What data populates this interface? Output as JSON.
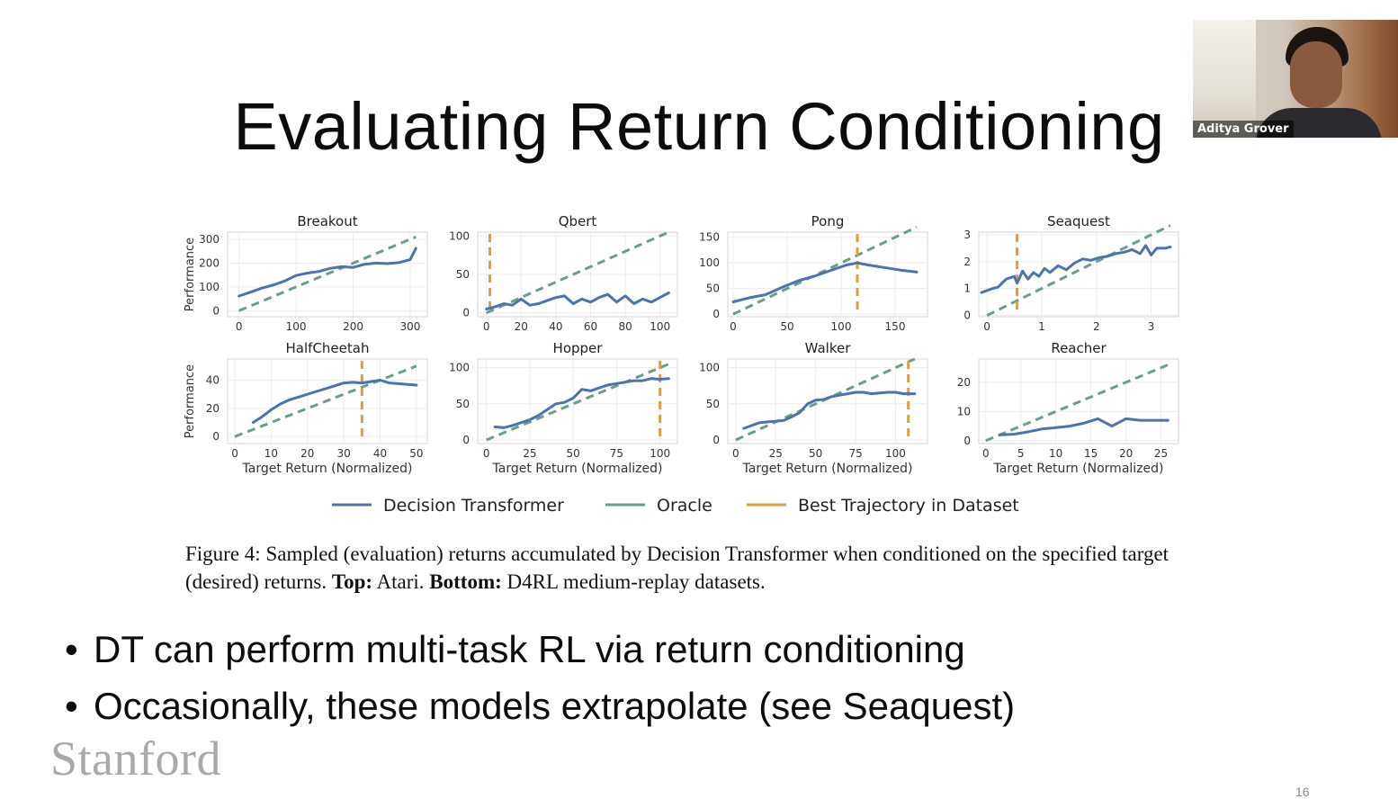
{
  "slide": {
    "title": "Evaluating Return Conditioning",
    "caption": {
      "lead": "Figure 4:   Sampled (evaluation) returns accumulated by Decision Transformer when conditioned on the specified target (desired) returns. ",
      "top_label": "Top:",
      "top_text": " Atari. ",
      "bottom_label": "Bottom:",
      "bottom_text": " D4RL medium-replay datasets."
    },
    "bullets": [
      "DT can perform multi-task RL via return conditioning",
      "Occasionally, these models extrapolate (see Seaquest)"
    ],
    "logo": "Stanford",
    "page_number": "16"
  },
  "webcam": {
    "participant_name": "Aditya Grover"
  },
  "colors": {
    "dt": "#4c72b0",
    "oracle": "#6a9f86",
    "best": "#dd9f3c"
  },
  "legend": [
    {
      "name": "Decision Transformer",
      "color": "#4c72b0",
      "dashed": false
    },
    {
      "name": "Oracle",
      "color": "#6a9f86",
      "dashed": false
    },
    {
      "name": "Best Trajectory in Dataset",
      "color": "#dd9f3c",
      "dashed": false
    }
  ],
  "chart_data": [
    {
      "type": "line",
      "title": "Breakout",
      "ylabel": "Performance",
      "xlabel": "",
      "xlim": [
        -20,
        330
      ],
      "ylim": [
        -25,
        330
      ],
      "xticks": [
        0,
        100,
        200,
        300
      ],
      "yticks": [
        0,
        100,
        200,
        300
      ],
      "x": [
        0,
        20,
        40,
        60,
        80,
        100,
        120,
        140,
        160,
        180,
        200,
        220,
        240,
        260,
        280,
        300,
        310
      ],
      "y": [
        62,
        78,
        95,
        108,
        125,
        148,
        158,
        165,
        178,
        185,
        182,
        195,
        200,
        198,
        202,
        215,
        262
      ],
      "oracle": [
        0,
        310
      ],
      "best": null
    },
    {
      "type": "line",
      "title": "Qbert",
      "ylabel": "",
      "xlabel": "",
      "xlim": [
        -5,
        110
      ],
      "ylim": [
        -5,
        105
      ],
      "xticks": [
        0,
        20,
        40,
        60,
        80,
        100
      ],
      "yticks": [
        0,
        50,
        100
      ],
      "x": [
        0,
        5,
        10,
        15,
        20,
        25,
        30,
        35,
        40,
        45,
        50,
        55,
        60,
        65,
        70,
        75,
        80,
        85,
        90,
        95,
        100,
        105
      ],
      "y": [
        5,
        8,
        12,
        10,
        18,
        10,
        12,
        16,
        20,
        22,
        12,
        18,
        14,
        20,
        24,
        14,
        22,
        12,
        18,
        14,
        20,
        26
      ],
      "oracle": [
        0,
        105
      ],
      "best": 2
    },
    {
      "type": "line",
      "title": "Pong",
      "ylabel": "",
      "xlabel": "",
      "xlim": [
        -5,
        180
      ],
      "ylim": [
        -5,
        160
      ],
      "xticks": [
        0,
        50,
        100,
        150
      ],
      "yticks": [
        0,
        50,
        100,
        150
      ],
      "x": [
        0,
        15,
        30,
        45,
        60,
        75,
        90,
        105,
        115,
        125,
        140,
        155,
        170
      ],
      "y": [
        24,
        32,
        38,
        52,
        65,
        74,
        85,
        96,
        100,
        96,
        91,
        86,
        82
      ],
      "oracle": [
        0,
        170
      ],
      "best": 115
    },
    {
      "type": "line",
      "title": "Seaquest",
      "ylabel": "",
      "xlabel": "",
      "xlim": [
        -0.15,
        3.5
      ],
      "ylim": [
        -0.05,
        3.1
      ],
      "xticks": [
        0,
        1,
        2,
        3
      ],
      "yticks": [
        0,
        1,
        2,
        3
      ],
      "x": [
        -0.1,
        0.1,
        0.2,
        0.35,
        0.5,
        0.55,
        0.65,
        0.75,
        0.85,
        0.95,
        1.05,
        1.15,
        1.3,
        1.45,
        1.6,
        1.75,
        1.9,
        2.05,
        2.2,
        2.35,
        2.5,
        2.65,
        2.8,
        2.9,
        3.0,
        3.1,
        3.25,
        3.35
      ],
      "y": [
        0.85,
        1.0,
        1.05,
        1.35,
        1.45,
        1.2,
        1.65,
        1.35,
        1.6,
        1.45,
        1.75,
        1.6,
        1.85,
        1.7,
        1.95,
        2.1,
        2.05,
        2.15,
        2.2,
        2.3,
        2.35,
        2.45,
        2.3,
        2.6,
        2.25,
        2.5,
        2.5,
        2.55
      ],
      "oracle": [
        0,
        3.35
      ],
      "best": 0.55
    },
    {
      "type": "line",
      "title": "HalfCheetah",
      "ylabel": "Performance",
      "xlabel": "Target Return (Normalized)",
      "xlim": [
        -2,
        53
      ],
      "ylim": [
        -5,
        55
      ],
      "xticks": [
        0,
        10,
        20,
        30,
        40,
        50
      ],
      "yticks": [
        0,
        20,
        40
      ],
      "x": [
        5,
        7.5,
        10,
        12.5,
        15,
        17.5,
        20,
        22.5,
        25,
        27.5,
        30,
        32.5,
        35,
        37.5,
        40,
        42.5,
        45,
        47.5,
        50
      ],
      "y": [
        10,
        14,
        19,
        23,
        26,
        28,
        30,
        32,
        34,
        36,
        38,
        38.5,
        38,
        39,
        40,
        38,
        37.5,
        37,
        36.5
      ],
      "oracle": [
        0,
        50
      ],
      "best": 35
    },
    {
      "type": "line",
      "title": "Hopper",
      "ylabel": "",
      "xlabel": "Target Return (Normalized)",
      "xlim": [
        -5,
        110
      ],
      "ylim": [
        -5,
        112
      ],
      "xticks": [
        0,
        25,
        50,
        75,
        100
      ],
      "yticks": [
        0,
        50,
        100
      ],
      "x": [
        5,
        10,
        15,
        20,
        25,
        30,
        35,
        40,
        45,
        50,
        55,
        60,
        65,
        70,
        75,
        80,
        85,
        90,
        95,
        100,
        105
      ],
      "y": [
        18,
        17,
        20,
        24,
        28,
        34,
        42,
        50,
        52,
        58,
        70,
        68,
        72,
        76,
        78,
        80,
        82,
        82,
        85,
        84,
        85
      ],
      "oracle": [
        0,
        105
      ],
      "best": 100
    },
    {
      "type": "line",
      "title": "Walker",
      "ylabel": "",
      "xlabel": "Target Return (Normalized)",
      "xlim": [
        -5,
        120
      ],
      "ylim": [
        -5,
        112
      ],
      "xticks": [
        0,
        25,
        50,
        75,
        100
      ],
      "yticks": [
        0,
        50,
        100
      ],
      "x": [
        5,
        10,
        15,
        20,
        25,
        30,
        35,
        40,
        45,
        50,
        55,
        60,
        65,
        70,
        75,
        80,
        85,
        90,
        95,
        100,
        105,
        112
      ],
      "y": [
        16,
        20,
        24,
        25,
        26,
        27,
        32,
        38,
        50,
        55,
        56,
        60,
        62,
        64,
        66,
        66,
        64,
        65,
        66,
        66,
        64,
        64
      ],
      "oracle": [
        0,
        112
      ],
      "best": 108
    },
    {
      "type": "line",
      "title": "Reacher",
      "ylabel": "",
      "xlabel": "Target Return (Normalized)",
      "xlim": [
        -1,
        27.5
      ],
      "ylim": [
        -1,
        28
      ],
      "xticks": [
        0,
        5,
        10,
        15,
        20,
        25
      ],
      "yticks": [
        0,
        10,
        20
      ],
      "x": [
        2,
        4,
        6,
        8,
        10,
        12,
        14,
        16,
        18,
        20,
        22,
        24,
        26
      ],
      "y": [
        2,
        2.2,
        3,
        4,
        4.5,
        5,
        6,
        7.5,
        5,
        7.5,
        7,
        7,
        7
      ],
      "oracle": [
        0,
        26
      ],
      "best": null
    }
  ]
}
